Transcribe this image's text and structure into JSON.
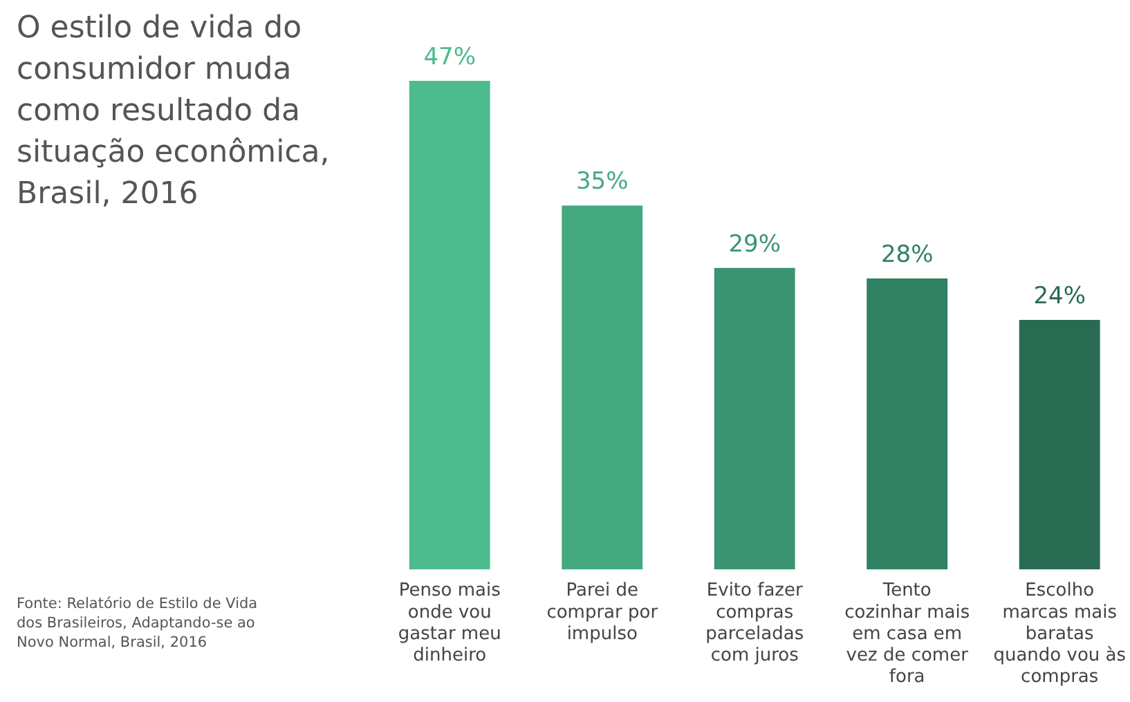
{
  "chart_data": {
    "type": "bar",
    "title": "O estilo de vida do consumidor muda como resultado da situação econômica, Brasil, 2016",
    "categories": [
      "Penso mais onde vou gastar meu dinheiro",
      "Parei de comprar por impulso",
      "Evito fazer compras parceladas com juros",
      "Tento cozinhar mais em casa em vez de comer fora",
      "Escolho marcas mais baratas quando vou às compras"
    ],
    "values": [
      47,
      35,
      29,
      28,
      24
    ],
    "value_labels": [
      "47%",
      "35%",
      "29%",
      "28%",
      "24%"
    ],
    "colors": [
      "#4dbb8e",
      "#44a87f",
      "#3a9471",
      "#2f8162",
      "#296b52"
    ],
    "relative": false,
    "grid": false,
    "legend": false,
    "annotations": [
      "Fonte: Relatório de Estilo de Vida dos Brasileiros, Adaptando-se ao Novo Normal, Brasil, 2016"
    ]
  }
}
